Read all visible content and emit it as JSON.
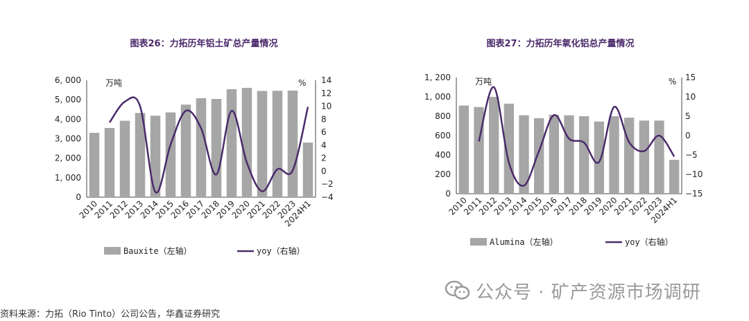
{
  "charts": [
    {
      "title": "图表26：力拓历年铝土矿总产量情况",
      "left_unit": "万吨",
      "right_unit": "%",
      "left_ticks": [
        "0",
        "1, 000",
        "2, 000",
        "3, 000",
        "4, 000",
        "5, 000",
        "6, 000"
      ],
      "right_ticks": [
        "−4",
        "−2",
        "0",
        "2",
        "4",
        "6",
        "8",
        "10",
        "12",
        "14"
      ],
      "legend": {
        "bar": "Bauxite（左轴）",
        "line": "yoy（右轴）"
      }
    },
    {
      "title": "图表27：力拓历年氧化铝总产量情况",
      "left_unit": "万吨",
      "right_unit": "%",
      "left_ticks": [
        "0",
        "200",
        "400",
        "600",
        "800",
        "1, 000",
        "1, 200"
      ],
      "right_ticks": [
        "−15",
        "−10",
        "−5",
        "0",
        "5",
        "10",
        "15"
      ],
      "legend": {
        "bar": "Alumina（左轴）",
        "line": "yoy（右轴）"
      }
    }
  ],
  "chart_data": [
    {
      "type": "bar",
      "title": "图表26：力拓历年铝土矿总产量情况",
      "categories": [
        "2010",
        "2011",
        "2012",
        "2013",
        "2014",
        "2015",
        "2016",
        "2017",
        "2018",
        "2019",
        "2020",
        "2021",
        "2022",
        "2023",
        "2024H1"
      ],
      "series": [
        {
          "name": "Bauxite（左轴）",
          "type": "bar",
          "axis": "left",
          "color": "#a6a6a6",
          "values": [
            3300,
            3550,
            3920,
            4320,
            4180,
            4350,
            4750,
            5080,
            5040,
            5540,
            5610,
            5450,
            5460,
            5470,
            2800
          ]
        },
        {
          "name": "yoy（右轴）",
          "type": "line",
          "axis": "right",
          "color": "#4b2a6b",
          "values": [
            null,
            7.5,
            10.7,
            10.0,
            -3.2,
            4.1,
            9.3,
            6.6,
            -0.5,
            9.3,
            1.3,
            -3.1,
            0.3,
            0.1,
            9.9
          ]
        }
      ],
      "ylabel": "万吨",
      "y2label": "%",
      "ylim": [
        0,
        6000
      ],
      "y2lim": [
        -4,
        14
      ]
    },
    {
      "type": "bar",
      "title": "图表27：力拓历年氧化铝总产量情况",
      "categories": [
        "2010",
        "2011",
        "2012",
        "2013",
        "2014",
        "2015",
        "2016",
        "2017",
        "2018",
        "2019",
        "2020",
        "2021",
        "2022",
        "2023",
        "2024H1"
      ],
      "series": [
        {
          "name": "Alumina（左轴）",
          "type": "bar",
          "axis": "left",
          "color": "#a6a6a6",
          "values": [
            910,
            895,
            1000,
            930,
            810,
            780,
            815,
            810,
            800,
            745,
            800,
            785,
            755,
            755,
            350
          ]
        },
        {
          "name": "yoy（右轴）",
          "type": "line",
          "axis": "right",
          "color": "#4b2a6b",
          "values": [
            null,
            -1.5,
            12.5,
            -7.0,
            -12.9,
            -4.0,
            5.3,
            -0.8,
            -1.8,
            -6.8,
            7.4,
            -1.7,
            -4.0,
            0.0,
            -5.4
          ]
        }
      ],
      "ylabel": "万吨",
      "y2label": "%",
      "ylim": [
        0,
        1200
      ],
      "y2lim": [
        -15,
        15
      ]
    }
  ],
  "footer": {
    "source": "资料来源：力拓（Rio Tinto）公司公告，华鑫证券研究",
    "watermark": "公众号 · 矿产资源市场调研"
  }
}
